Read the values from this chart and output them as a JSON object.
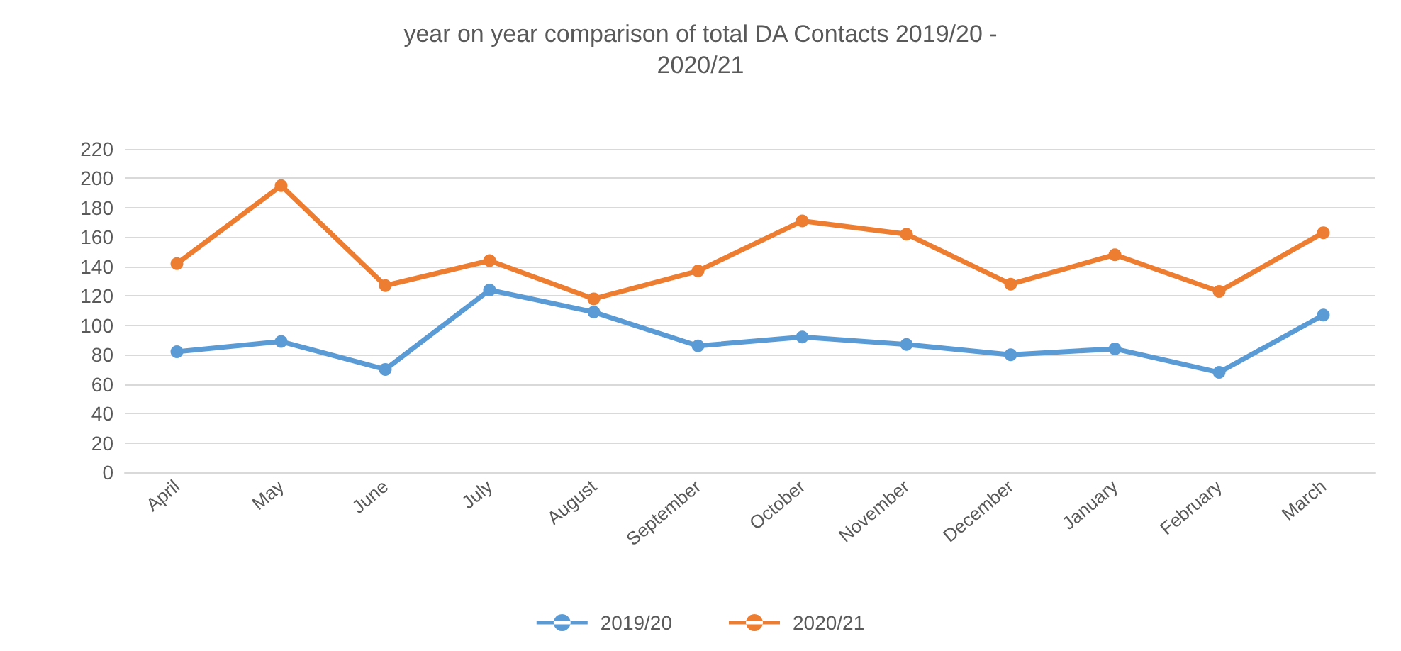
{
  "chart_data": {
    "type": "line",
    "title": "year on year comparison of total DA Contacts 2019/20 -\n2020/21",
    "categories": [
      "April",
      "May",
      "June",
      "July",
      "August",
      "September",
      "October",
      "November",
      "December",
      "January",
      "February",
      "March"
    ],
    "series": [
      {
        "name": "2019/20",
        "color": "#5b9bd5",
        "values": [
          82,
          89,
          70,
          124,
          109,
          86,
          92,
          87,
          80,
          84,
          68,
          107
        ]
      },
      {
        "name": "2020/21",
        "color": "#ed7d31",
        "values": [
          142,
          195,
          127,
          144,
          118,
          137,
          171,
          162,
          128,
          148,
          123,
          163
        ]
      }
    ],
    "ylim": [
      0,
      220
    ],
    "yticks": [
      0,
      20,
      40,
      60,
      80,
      100,
      120,
      140,
      160,
      180,
      200,
      220
    ],
    "grid": "y",
    "legend": "bottom",
    "marker": "circle",
    "line_style": "solid"
  }
}
